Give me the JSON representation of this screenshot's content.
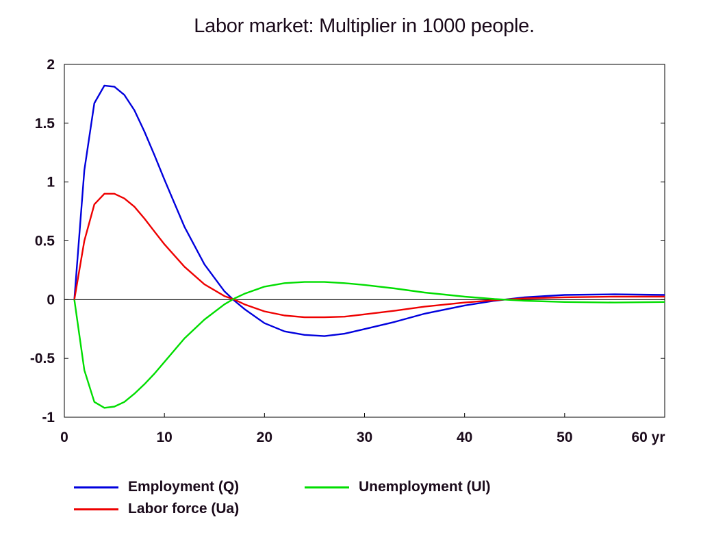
{
  "chart_data": {
    "type": "line",
    "title": "Labor market: Multiplier in 1000 people.",
    "xlabel": "",
    "ylabel": "",
    "x_unit": "yr",
    "xlim": [
      0,
      60
    ],
    "ylim": [
      -1,
      2
    ],
    "x_ticks": [
      0,
      10,
      20,
      30,
      40,
      50,
      60
    ],
    "x_tick_labels": [
      "0",
      "10",
      "20",
      "30",
      "40",
      "50",
      "60 yr"
    ],
    "y_ticks": [
      2,
      1.5,
      1,
      0.5,
      0,
      -0.5,
      -1
    ],
    "y_tick_labels": [
      "2",
      "1.5",
      "1",
      "0.5",
      "0",
      "-0.5",
      "-1"
    ],
    "grid": false,
    "legend_position": "bottom",
    "x": [
      1,
      2,
      3,
      4,
      5,
      6,
      7,
      8,
      9,
      10,
      12,
      14,
      16,
      17,
      18,
      20,
      22,
      24,
      26,
      28,
      30,
      33,
      36,
      40,
      43,
      46,
      50,
      55,
      60
    ],
    "series": [
      {
        "name": "Employment (Q)",
        "color": "#0000dd",
        "values": [
          0,
          1.1,
          1.67,
          1.82,
          1.81,
          1.74,
          1.61,
          1.43,
          1.23,
          1.02,
          0.62,
          0.3,
          0.07,
          -0.01,
          -0.08,
          -0.2,
          -0.27,
          -0.3,
          -0.31,
          -0.29,
          -0.25,
          -0.19,
          -0.12,
          -0.05,
          -0.01,
          0.02,
          0.04,
          0.045,
          0.04
        ]
      },
      {
        "name": "Labor force (Ua)",
        "color": "#ee0000",
        "values": [
          0,
          0.5,
          0.81,
          0.9,
          0.9,
          0.86,
          0.79,
          0.69,
          0.58,
          0.47,
          0.28,
          0.13,
          0.03,
          0.0,
          -0.04,
          -0.1,
          -0.135,
          -0.15,
          -0.15,
          -0.145,
          -0.125,
          -0.095,
          -0.06,
          -0.025,
          -0.005,
          0.01,
          0.02,
          0.025,
          0.025
        ]
      },
      {
        "name": "Unemployment (Ul)",
        "color": "#00dd00",
        "values": [
          0,
          -0.6,
          -0.87,
          -0.92,
          -0.91,
          -0.87,
          -0.8,
          -0.72,
          -0.63,
          -0.53,
          -0.33,
          -0.17,
          -0.04,
          0.01,
          0.05,
          0.11,
          0.14,
          0.15,
          0.15,
          0.14,
          0.125,
          0.095,
          0.06,
          0.025,
          0.005,
          -0.01,
          -0.02,
          -0.025,
          -0.02
        ]
      }
    ]
  },
  "legend": {
    "items": [
      {
        "label": "Employment (Q)",
        "color": "#0000dd"
      },
      {
        "label": "Labor force (Ua)",
        "color": "#ee0000"
      },
      {
        "label": "Unemployment (Ul)",
        "color": "#00dd00"
      }
    ]
  }
}
